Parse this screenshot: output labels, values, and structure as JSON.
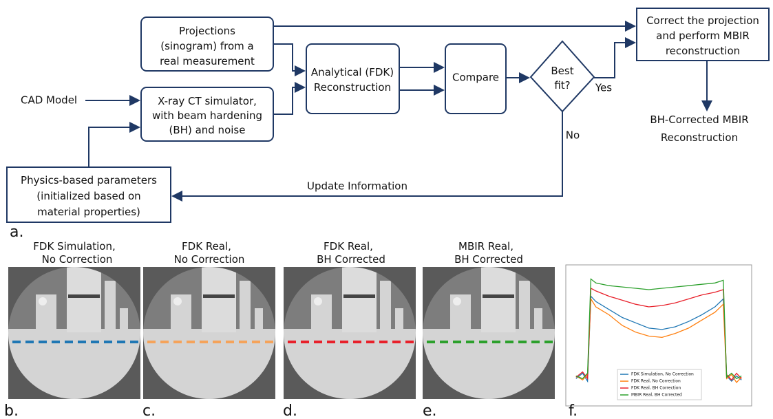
{
  "diagram": {
    "nodes": [
      {
        "lines": [
          "Projections",
          "(sinogram) from a",
          "real measurement"
        ]
      },
      {
        "lines": [
          "X-ray CT simulator,",
          "with beam hardening",
          "(BH) and noise"
        ]
      },
      {
        "lines": [
          "Analytical (FDK)",
          "Reconstruction"
        ]
      },
      {
        "lines": [
          "Compare"
        ]
      },
      {
        "lines": [
          "Best",
          "fit?"
        ]
      },
      {
        "lines": [
          "Correct the projection",
          "and perform MBIR",
          "reconstruction"
        ]
      },
      {
        "lines": [
          "Physics-based parameters",
          "(initialized based on",
          "material properties)"
        ]
      }
    ],
    "inputs": [
      "CAD Model"
    ],
    "outputs": [
      "BH-Corrected MBIR",
      "Reconstruction"
    ],
    "edge_labels": [
      "Yes",
      "No",
      "Update Information"
    ],
    "panel_label": "a."
  },
  "panels": [
    {
      "title": [
        "FDK Simulation,",
        "No Correction"
      ],
      "label": "b."
    },
    {
      "title": [
        "FDK Real,",
        "No Correction"
      ],
      "label": "c."
    },
    {
      "title": [
        "FDK Real,",
        "BH Corrected"
      ],
      "label": "d."
    },
    {
      "title": [
        "MBIR Real,",
        "BH Corrected"
      ],
      "label": "e."
    }
  ],
  "chart_data": {
    "type": "line",
    "label": "f.",
    "x": [
      0,
      4,
      7,
      9,
      12,
      20,
      28,
      36,
      44,
      52,
      60,
      68,
      76,
      84,
      89,
      91,
      94,
      97,
      100
    ],
    "xlim": [
      -2,
      102
    ],
    "ylim": [
      0,
      1
    ],
    "legend": "lower center",
    "series": [
      {
        "name": "FDK Simulation, No Correction",
        "color": "#1f77b4",
        "values": [
          0.18,
          0.22,
          0.16,
          0.8,
          0.76,
          0.7,
          0.64,
          0.6,
          0.56,
          0.55,
          0.57,
          0.61,
          0.66,
          0.72,
          0.78,
          0.2,
          0.16,
          0.2,
          0.17
        ]
      },
      {
        "name": "FDK Real, No Correction",
        "color": "#ff7f0e",
        "values": [
          0.2,
          0.17,
          0.21,
          0.78,
          0.72,
          0.66,
          0.58,
          0.53,
          0.5,
          0.49,
          0.52,
          0.56,
          0.62,
          0.68,
          0.74,
          0.18,
          0.21,
          0.15,
          0.19
        ]
      },
      {
        "name": "FDK Real, BH Correction",
        "color": "#e8202a",
        "values": [
          0.19,
          0.23,
          0.18,
          0.86,
          0.84,
          0.8,
          0.77,
          0.74,
          0.72,
          0.73,
          0.75,
          0.78,
          0.81,
          0.83,
          0.85,
          0.21,
          0.17,
          0.22,
          0.18
        ]
      },
      {
        "name": "MBIR Real, BH Corrected",
        "color": "#2ca02c",
        "values": [
          0.2,
          0.18,
          0.22,
          0.93,
          0.9,
          0.88,
          0.87,
          0.86,
          0.85,
          0.86,
          0.87,
          0.88,
          0.89,
          0.9,
          0.92,
          0.19,
          0.22,
          0.18,
          0.2
        ]
      }
    ]
  }
}
